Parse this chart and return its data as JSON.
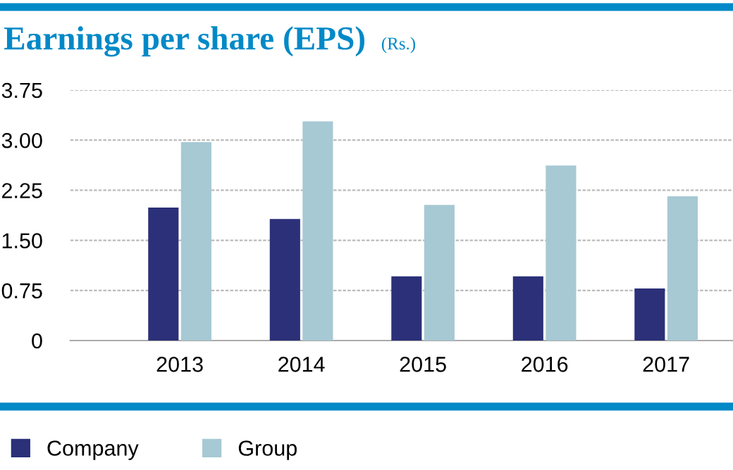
{
  "chart_data": {
    "type": "bar",
    "title": "Earnings per share (EPS)",
    "subtitle": "(Rs.)",
    "categories": [
      "2013",
      "2014",
      "2015",
      "2016",
      "2017"
    ],
    "series": [
      {
        "name": "Company",
        "color": "#2b3078",
        "values": [
          1.99,
          1.82,
          0.96,
          0.96,
          0.78
        ]
      },
      {
        "name": "Group",
        "color": "#a6c9d4",
        "values": [
          2.97,
          3.28,
          2.03,
          2.62,
          2.16
        ]
      }
    ],
    "ylim": [
      0,
      3.75
    ],
    "yticks": [
      {
        "value": 0,
        "label": "0"
      },
      0.75,
      {
        "value": 1.5,
        "label": "1.50"
      },
      2.25,
      {
        "value": 3,
        "label": "3.00"
      },
      3.75
    ],
    "grid": "y",
    "legend": "bottom left"
  }
}
